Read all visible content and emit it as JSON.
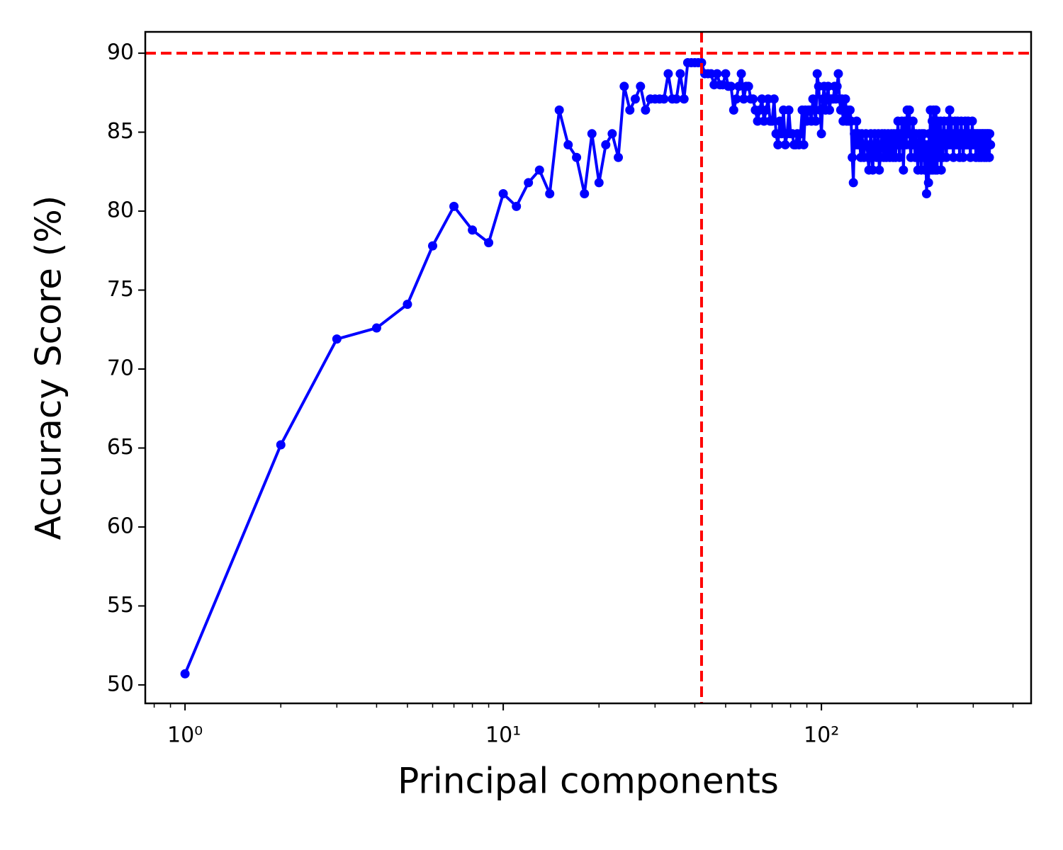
{
  "chart_data": {
    "type": "line",
    "xlabel": "Principal components",
    "ylabel": "Accuracy Score (%)",
    "xscale": "log",
    "xlim": [
      0.75,
      456
    ],
    "ylim": [
      48.83,
      91.35
    ],
    "xticks": [
      {
        "value": 1,
        "label": "10⁰"
      },
      {
        "value": 10,
        "label": "10¹"
      },
      {
        "value": 100,
        "label": "10²"
      }
    ],
    "xminorticks": [
      0.8,
      0.9,
      2,
      3,
      4,
      5,
      6,
      7,
      8,
      9,
      20,
      30,
      40,
      50,
      60,
      70,
      80,
      90,
      200,
      300,
      400
    ],
    "yticks": [
      50,
      55,
      60,
      65,
      70,
      75,
      80,
      85,
      90
    ],
    "reference_lines": {
      "x": 42,
      "y": 90,
      "color": "#ff0000"
    },
    "series": [
      {
        "color": "#0000ff",
        "x": [
          1,
          2,
          3,
          4,
          5,
          6,
          7,
          8,
          9,
          10,
          11,
          12,
          13,
          14,
          15,
          16,
          17,
          18,
          19,
          20,
          21,
          22,
          23,
          24,
          25,
          26,
          27,
          28,
          29,
          30,
          31,
          32,
          33,
          34,
          35,
          36,
          37,
          38,
          39,
          40,
          41,
          42,
          43,
          44,
          45,
          46,
          47,
          48,
          49,
          50,
          51,
          52,
          53,
          54,
          55,
          56,
          57,
          58,
          59,
          60,
          61,
          62,
          63,
          64,
          65,
          66,
          67,
          68,
          69,
          70,
          71,
          72,
          73,
          74,
          75,
          76,
          77,
          78,
          79,
          80,
          81,
          82,
          83,
          84,
          85,
          86,
          87,
          88,
          89,
          90,
          91,
          92,
          93,
          94,
          95,
          96,
          97,
          98,
          99,
          100,
          101,
          102,
          103,
          104,
          105,
          106,
          107,
          108,
          109,
          110,
          111,
          112,
          113,
          114,
          115,
          116,
          117,
          118,
          119,
          120,
          121,
          122,
          123,
          124,
          125,
          126,
          127,
          128,
          129,
          130,
          131,
          132,
          133,
          134,
          135,
          136,
          137,
          138,
          139,
          140,
          141,
          142,
          143,
          144,
          145,
          146,
          147,
          148,
          149,
          150,
          151,
          152,
          153,
          154,
          155,
          156,
          157,
          158,
          159,
          160,
          161,
          162,
          163,
          164,
          165,
          166,
          167,
          168,
          169,
          170,
          171,
          172,
          173,
          174,
          175,
          176,
          177,
          178,
          179,
          180,
          181,
          182,
          183,
          184,
          185,
          186,
          187,
          188,
          189,
          190,
          191,
          192,
          193,
          194,
          195,
          196,
          197,
          198,
          199,
          200,
          201,
          202,
          203,
          204,
          205,
          206,
          207,
          208,
          209,
          210,
          211,
          212,
          213,
          214,
          215,
          216,
          217,
          218,
          219,
          220,
          221,
          222,
          223,
          224,
          225,
          226,
          227,
          228,
          229,
          230,
          231,
          232,
          233,
          234,
          235,
          236,
          237,
          238,
          239,
          240,
          241,
          242,
          243,
          244,
          245,
          246,
          247,
          248,
          249,
          250,
          251,
          252,
          253,
          254,
          255,
          256,
          257,
          258,
          259,
          260,
          261,
          262,
          263,
          264,
          265,
          266,
          267,
          268,
          269,
          270,
          271,
          272,
          273,
          274,
          275,
          276,
          277,
          278,
          279,
          280,
          281,
          282,
          283,
          284,
          285,
          286,
          287,
          288,
          289,
          290,
          291,
          292,
          293,
          294,
          295,
          296,
          297,
          298,
          299,
          300,
          301,
          302,
          303,
          304,
          305,
          306,
          307,
          308,
          309,
          310,
          311,
          312,
          313,
          314,
          315,
          316,
          317,
          318,
          319,
          320,
          321,
          322,
          323,
          324,
          325,
          326,
          327,
          328,
          329,
          330,
          331,
          332,
          333,
          334,
          335,
          336,
          337,
          338,
          339,
          340
        ],
        "values": [
          50.7,
          65.2,
          71.9,
          72.6,
          74.1,
          77.8,
          80.3,
          78.8,
          78.0,
          81.1,
          80.3,
          81.8,
          82.6,
          81.1,
          86.4,
          84.2,
          83.4,
          81.1,
          84.9,
          81.8,
          84.2,
          84.9,
          83.4,
          87.9,
          86.4,
          87.1,
          87.9,
          86.4,
          87.1,
          87.1,
          87.1,
          87.1,
          88.7,
          87.1,
          87.1,
          88.7,
          87.1,
          89.4,
          89.4,
          89.4,
          89.4,
          89.4,
          88.7,
          88.7,
          88.7,
          88.0,
          88.7,
          88.0,
          88.0,
          88.7,
          87.9,
          87.9,
          86.4,
          87.1,
          87.9,
          88.7,
          87.1,
          87.9,
          87.9,
          87.1,
          87.1,
          86.4,
          85.7,
          86.4,
          87.1,
          85.7,
          86.4,
          87.1,
          85.7,
          85.7,
          87.1,
          84.9,
          84.2,
          85.7,
          84.9,
          86.4,
          84.2,
          84.9,
          86.4,
          84.9,
          84.9,
          84.2,
          84.2,
          84.9,
          84.2,
          84.9,
          86.4,
          84.2,
          86.4,
          85.7,
          86.4,
          86.4,
          85.7,
          87.1,
          86.4,
          85.7,
          88.7,
          87.9,
          86.4,
          84.9,
          87.1,
          87.9,
          86.4,
          87.1,
          87.9,
          86.4,
          87.1,
          87.1,
          87.1,
          87.9,
          87.1,
          87.9,
          88.7,
          87.1,
          86.4,
          87.1,
          85.7,
          86.4,
          87.1,
          85.7,
          86.4,
          85.7,
          86.4,
          85.7,
          83.4,
          81.8,
          84.9,
          84.2,
          85.7,
          84.2,
          84.9,
          84.2,
          83.4,
          84.9,
          84.2,
          83.4,
          84.2,
          84.9,
          84.2,
          83.4,
          82.6,
          84.2,
          84.9,
          83.4,
          82.6,
          84.2,
          84.9,
          84.2,
          83.4,
          84.2,
          84.9,
          82.6,
          83.4,
          84.2,
          84.9,
          84.2,
          83.4,
          84.9,
          84.2,
          83.4,
          84.2,
          84.9,
          84.2,
          83.4,
          84.2,
          84.9,
          84.2,
          83.4,
          84.9,
          84.2,
          83.4,
          84.9,
          84.2,
          85.7,
          84.2,
          83.4,
          84.9,
          84.2,
          85.7,
          84.9,
          82.6,
          84.2,
          85.7,
          84.9,
          84.2,
          86.4,
          84.9,
          85.7,
          86.4,
          84.2,
          83.4,
          84.9,
          84.2,
          85.7,
          84.9,
          84.2,
          83.4,
          84.9,
          84.2,
          83.4,
          82.6,
          84.2,
          84.9,
          83.4,
          84.2,
          82.6,
          84.9,
          84.2,
          83.4,
          84.9,
          82.6,
          84.2,
          83.4,
          81.1,
          82.6,
          84.2,
          81.8,
          84.9,
          83.4,
          86.4,
          82.6,
          84.2,
          85.7,
          82.6,
          86.4,
          83.4,
          84.9,
          82.6,
          86.4,
          84.2,
          82.6,
          85.7,
          84.2,
          83.4,
          84.9,
          84.2,
          85.7,
          82.6,
          84.9,
          84.2,
          83.4,
          84.9,
          85.7,
          84.2,
          84.9,
          84.2,
          83.4,
          84.9,
          84.2,
          85.7,
          84.2,
          84.9,
          86.4,
          84.2,
          84.9,
          85.7,
          84.2,
          84.9,
          84.2,
          83.4,
          84.9,
          84.2,
          85.7,
          84.2,
          84.9,
          84.2,
          84.9,
          85.7,
          84.2,
          84.9,
          84.2,
          83.4,
          84.9,
          84.2,
          85.7,
          84.9,
          84.2,
          84.9,
          83.4,
          84.2,
          84.9,
          84.2,
          85.7,
          84.2,
          84.9,
          84.2,
          84.9,
          84.2,
          85.7,
          84.9,
          84.2,
          84.9,
          84.2,
          83.4,
          84.9,
          84.2,
          84.9,
          85.7,
          84.2,
          84.9,
          84.2,
          84.9,
          84.2,
          84.9,
          84.2,
          83.4,
          84.9,
          84.2,
          84.9,
          84.2,
          84.9,
          84.2,
          83.4,
          84.9,
          84.2,
          84.9,
          84.2,
          83.4,
          84.9,
          84.2,
          84.9,
          84.2,
          84.9,
          84.2,
          83.4,
          84.9,
          84.2,
          84.9,
          84.2,
          83.4,
          84.9,
          84.2,
          84.9,
          84.2,
          84.9,
          84.2,
          83.4,
          84.9,
          84.2,
          84.2
        ]
      }
    ]
  }
}
